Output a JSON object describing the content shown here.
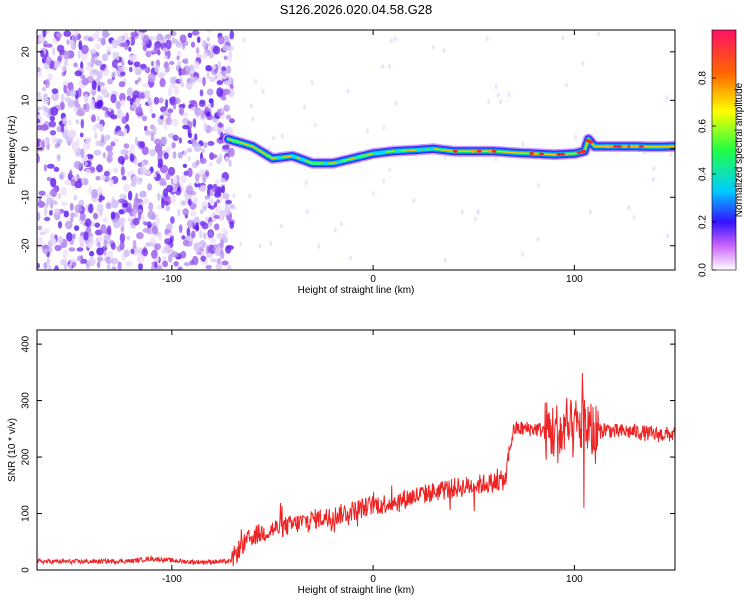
{
  "title": "S126.2026.020.04.58.G28",
  "chart_data": [
    {
      "type": "heatmap",
      "xlabel": "Height of straight line (km)",
      "ylabel": "Frequency (Hz)",
      "xlim": [
        -167,
        150
      ],
      "ylim": [
        -25,
        24.5
      ],
      "xticks": [
        -100,
        0,
        100
      ],
      "yticks": [
        -20,
        -10,
        0,
        10,
        20
      ],
      "noise_region_upper_height_km": -70,
      "ridge": {
        "x": [
          -72,
          -60,
          -50,
          -40,
          -30,
          -20,
          -10,
          0,
          10,
          20,
          30,
          40,
          50,
          60,
          70,
          80,
          90,
          100,
          105,
          107,
          110,
          120,
          130,
          140,
          150
        ],
        "freq": [
          2,
          0.5,
          -2,
          -1.5,
          -3,
          -3,
          -2,
          -1,
          -0.5,
          -0.3,
          0,
          -0.5,
          -0.5,
          -0.5,
          -0.8,
          -1,
          -1.2,
          -1,
          -0.5,
          2,
          0.5,
          0.5,
          0.5,
          0.4,
          0.5
        ]
      },
      "colorbar": {
        "label": "Normalized spectral amplitude",
        "range": [
          0,
          1
        ],
        "ticks": [
          "0.0",
          "0.2",
          "0.4",
          "0.6",
          "0.8"
        ]
      }
    },
    {
      "type": "line",
      "xlabel": "Height of straight line (km)",
      "ylabel": "SNR (10 * v/v)",
      "xlim": [
        -167,
        150
      ],
      "ylim": [
        0,
        425
      ],
      "xticks": [
        -100,
        0,
        100
      ],
      "yticks": [
        0,
        100,
        200,
        300,
        400
      ],
      "series": [
        {
          "name": "SNR",
          "color": "#ee2222",
          "x": [
            -167,
            -140,
            -120,
            -110,
            -90,
            -71,
            -67,
            -60,
            -50,
            -40,
            -30,
            -20,
            -10,
            0,
            10,
            20,
            30,
            40,
            50,
            60,
            66,
            67,
            70,
            80,
            90,
            95,
            100,
            105,
            110,
            115,
            120,
            130,
            140,
            150
          ],
          "y": [
            15,
            15,
            16,
            20,
            14,
            15,
            35,
            60,
            72,
            80,
            90,
            95,
            105,
            115,
            120,
            130,
            138,
            145,
            150,
            155,
            160,
            200,
            250,
            250,
            245,
            240,
            250,
            260,
            240,
            250,
            245,
            245,
            240,
            240
          ]
        }
      ]
    }
  ]
}
